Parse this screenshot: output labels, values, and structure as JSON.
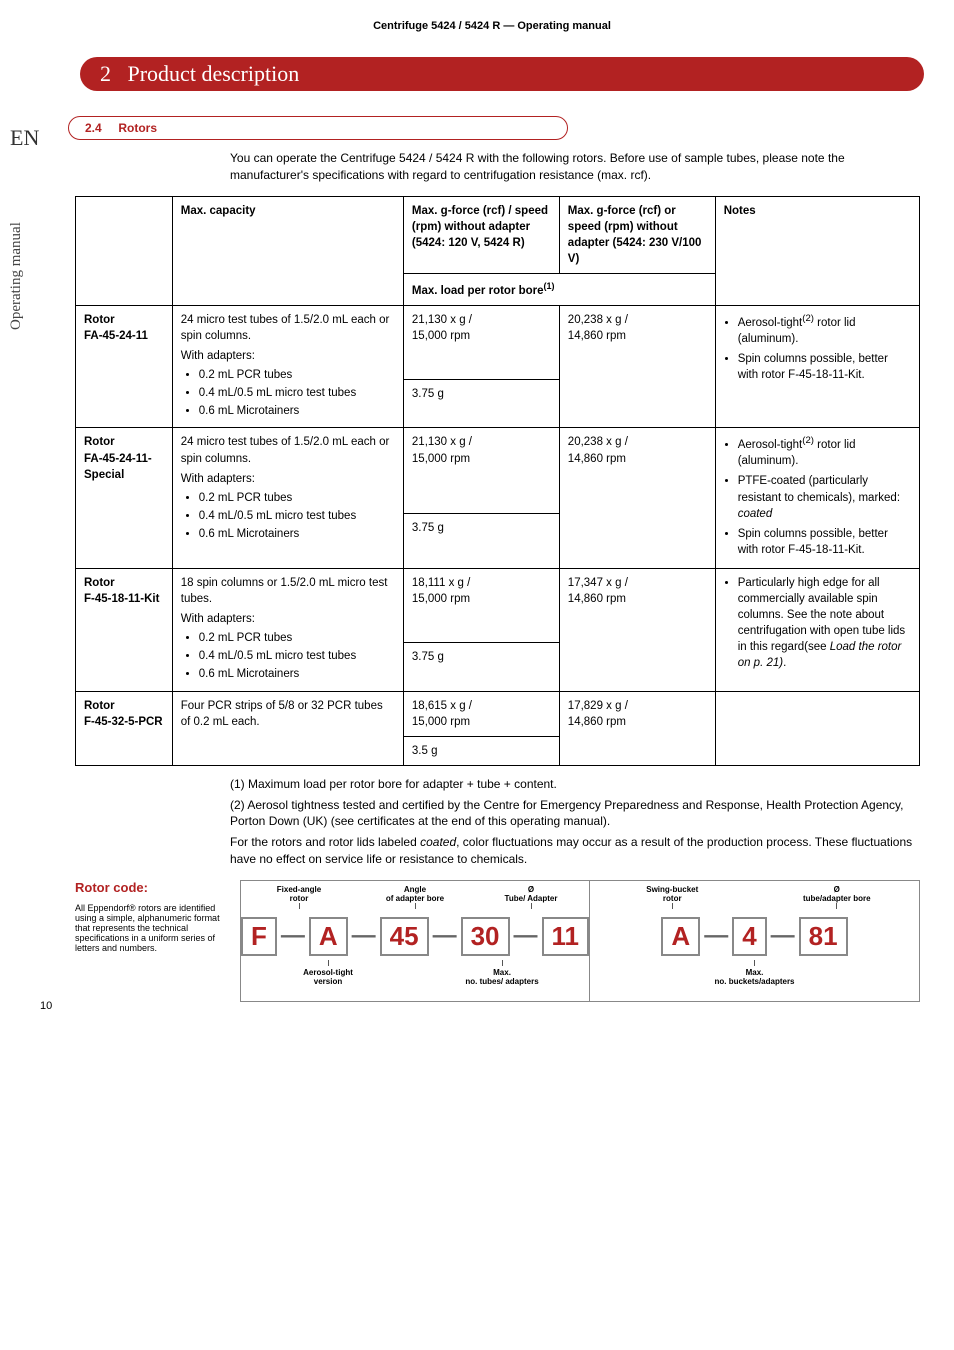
{
  "document": {
    "top_header": "Centrifuge 5424 / 5424 R  —  Operating manual",
    "lang_code": "EN",
    "sidebar_text": "Operating manual",
    "page_number": "10"
  },
  "chapter": {
    "number": "2",
    "title": "Product description"
  },
  "section": {
    "number": "2.4",
    "title": "Rotors",
    "intro": "You can operate the Centrifuge 5424 / 5424 R with the following rotors. Before use of sample tubes, please note the manufacturer's specifications with regard to centrifugation resistance (max. rcf)."
  },
  "table": {
    "headers": {
      "capacity": "Max. capacity",
      "gforce1": "Max. g-force (rcf) / speed (rpm) without adapter (5424: 120 V, 5424 R)",
      "gforce2": "Max. g-force (rcf) or speed (rpm) without adapter (5424: 230 V/100 V)",
      "notes": "Notes",
      "load_row": "Max. load per rotor bore",
      "load_row_sup": "(1)"
    },
    "rows": [
      {
        "rotor_line1": "Rotor",
        "rotor_line2": "FA-45-24-11",
        "cap_main": "24 micro test tubes of 1.5/2.0 mL each or spin columns.",
        "cap_sub": "With adapters:",
        "cap_items": [
          "0.2 mL PCR tubes",
          "0.4 mL/0.5 mL micro test tubes",
          "0.6 mL Microtainers"
        ],
        "g1_l1": "21,130 x g /",
        "g1_l2": "15,000 rpm",
        "g1_load": "3.75 g",
        "g2_l1": "20,238 x g /",
        "g2_l2": "14,860 rpm",
        "note_items": [
          "Aerosol-tight<sup>(2)</sup> rotor lid (aluminum).",
          "Spin columns possible, better with rotor F-45-18-11-Kit."
        ]
      },
      {
        "rotor_line1": "Rotor",
        "rotor_line2": "FA-45-24-11-Special",
        "cap_main": "24 micro test tubes of 1.5/2.0 mL each or spin columns.",
        "cap_sub": "With adapters:",
        "cap_items": [
          "0.2 mL PCR tubes",
          "0.4 mL/0.5 mL micro test tubes",
          "0.6 mL Microtainers"
        ],
        "g1_l1": "21,130 x g /",
        "g1_l2": "15,000 rpm",
        "g1_load": "3.75 g",
        "g2_l1": "20,238 x g /",
        "g2_l2": "14,860 rpm",
        "note_items": [
          "Aerosol-tight<sup>(2)</sup> rotor lid (aluminum).",
          "PTFE-coated (particularly resistant to chemicals), marked: <i>coated</i>",
          "Spin columns possible, better with rotor F-45-18-11-Kit."
        ]
      },
      {
        "rotor_line1": "Rotor",
        "rotor_line2": "F-45-18-11-Kit",
        "cap_main": "18 spin columns or 1.5/2.0 mL micro test tubes.",
        "cap_sub": "With adapters:",
        "cap_items": [
          "0.2 mL PCR tubes",
          "0.4 mL/0.5 mL micro test tubes",
          "0.6 mL Microtainers"
        ],
        "g1_l1": "18,111 x g /",
        "g1_l2": "15,000 rpm",
        "g1_load": "3.75 g",
        "g2_l1": "17,347 x g /",
        "g2_l2": "14,860 rpm",
        "note_items": [
          "Particularly high edge for all commercially available spin columns. See the note about centrifugation with open tube lids in this regard(see <i>Load the rotor on p. 21)</i>."
        ]
      },
      {
        "rotor_line1": "Rotor",
        "rotor_line2": "F-45-32-5-PCR",
        "cap_main": "Four PCR strips of 5/8 or 32 PCR tubes of 0.2 mL each.",
        "cap_sub": "",
        "cap_items": [],
        "g1_l1": "18,615 x g /",
        "g1_l2": "15,000 rpm",
        "g1_load": "3.5 g",
        "g2_l1": "17,829 x g /",
        "g2_l2": "14,860 rpm",
        "note_items": []
      }
    ]
  },
  "footnotes": {
    "f1": "(1) Maximum load per rotor bore for adapter + tube + content.",
    "f2": "(2) Aerosol tightness tested and certified by the Centre for Emergency Preparedness and Response, Health Protection Agency, Porton Down (UK) (see certificates at the end of this operating manual).",
    "f3_a": "For the rotors and rotor lids labeled ",
    "f3_em": "coated",
    "f3_b": ", color fluctuations may occur as a result of the production process. These fluctuations have no effect on service life or resistance to chemicals."
  },
  "rotor_code": {
    "title": "Rotor code:",
    "desc": "All Eppendorf® rotors are identified using a simple, alphanumeric format that represents the technical specifications in a uniform series of letters and numbers.",
    "panel1": {
      "top": [
        "Fixed-angle rotor",
        "Angle of adapter bore",
        "Ø Tube/ Adapter"
      ],
      "boxes": [
        "F",
        "A",
        "45",
        "30",
        "11"
      ],
      "bottom": [
        "Aerosol-tight version",
        "Max. no. tubes/ adapters"
      ]
    },
    "panel2": {
      "top": [
        "Swing-bucket rotor",
        "Ø tube/adapter bore"
      ],
      "boxes": [
        "A",
        "4",
        "81"
      ],
      "bottom": [
        "Max. no. buckets/adapters"
      ]
    }
  }
}
